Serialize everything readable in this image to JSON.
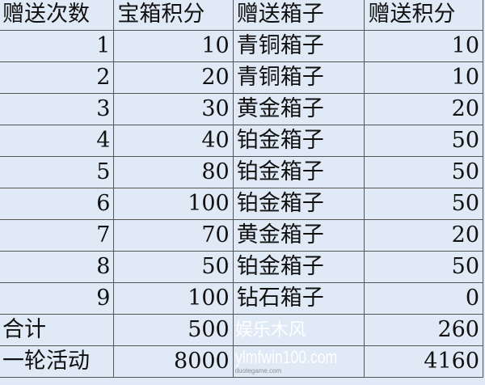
{
  "headers": [
    "赠送次数",
    "宝箱积分",
    "赠送箱子",
    "赠送积分"
  ],
  "rows": [
    [
      "1",
      "10",
      "青铜箱子",
      "10"
    ],
    [
      "2",
      "20",
      "青铜箱子",
      "10"
    ],
    [
      "3",
      "30",
      "黄金箱子",
      "20"
    ],
    [
      "4",
      "40",
      "铂金箱子",
      "50"
    ],
    [
      "5",
      "80",
      "铂金箱子",
      "50"
    ],
    [
      "6",
      "100",
      "铂金箱子",
      "50"
    ],
    [
      "7",
      "70",
      "黄金箱子",
      "20"
    ],
    [
      "8",
      "50",
      "铂金箱子",
      "50"
    ],
    [
      "9",
      "100",
      "钻石箱子",
      "0"
    ]
  ],
  "total": {
    "label": "合计",
    "box_points": "500",
    "box": "",
    "gift_points": "260"
  },
  "round": {
    "label": "一轮活动",
    "box_points": "8000",
    "box": "",
    "gift_points": "4160"
  },
  "watermark": {
    "line1": "娱乐木风",
    "line2": "ylmfwin100.com",
    "line3": "duotegame.com"
  },
  "colors": {
    "background": "#dfeaf6",
    "border": "#555555"
  }
}
